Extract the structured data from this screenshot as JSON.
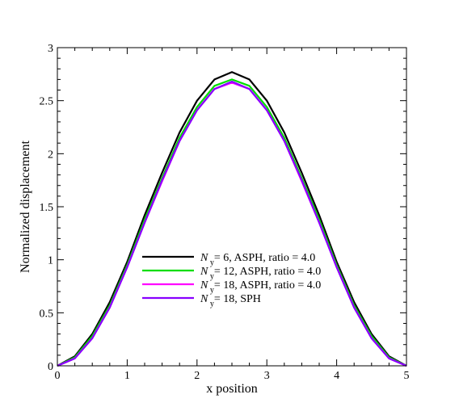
{
  "chart_data": {
    "type": "line",
    "xlabel": "x position",
    "ylabel": "Normalized displacement",
    "xlim": [
      0,
      5
    ],
    "ylim": [
      0,
      3
    ],
    "x_ticks": [
      "0",
      "1",
      "2",
      "3",
      "4",
      "5"
    ],
    "y_ticks": [
      "0",
      "0.5",
      "1",
      "1.5",
      "2",
      "2.5",
      "3"
    ],
    "grid": false,
    "legend_placement": "center-bottom",
    "x": [
      0,
      0.25,
      0.5,
      0.75,
      1.0,
      1.25,
      1.5,
      1.75,
      2.0,
      2.25,
      2.5,
      2.75,
      3.0,
      3.25,
      3.5,
      3.75,
      4.0,
      4.25,
      4.5,
      4.75,
      5.0
    ],
    "series": [
      {
        "label_prefix": "N",
        "label_sub": "y",
        "label_suffix": "= 6, ASPH, ratio = 4.0",
        "color": "#000000",
        "values": [
          0,
          0.09,
          0.3,
          0.6,
          0.98,
          1.42,
          1.82,
          2.2,
          2.5,
          2.7,
          2.77,
          2.7,
          2.5,
          2.2,
          1.82,
          1.42,
          0.98,
          0.6,
          0.3,
          0.09,
          0
        ]
      },
      {
        "label_prefix": "N",
        "label_sub": "y",
        "label_suffix": "= 12, ASPH, ratio = 4.0",
        "color": "#00dd00",
        "values": [
          0,
          0.08,
          0.28,
          0.57,
          0.95,
          1.38,
          1.77,
          2.15,
          2.44,
          2.64,
          2.7,
          2.64,
          2.44,
          2.15,
          1.77,
          1.38,
          0.95,
          0.57,
          0.28,
          0.08,
          0
        ]
      },
      {
        "label_prefix": "N",
        "label_sub": "y",
        "label_suffix": "= 18, ASPH, ratio = 4.0",
        "color": "#ff00ff",
        "values": [
          0,
          0.07,
          0.26,
          0.55,
          0.93,
          1.35,
          1.74,
          2.12,
          2.41,
          2.61,
          2.67,
          2.61,
          2.41,
          2.12,
          1.74,
          1.35,
          0.93,
          0.55,
          0.26,
          0.07,
          0
        ]
      },
      {
        "label_prefix": "N",
        "label_sub": "y",
        "label_suffix": "= 18, SPH",
        "color": "#8800ff",
        "values": [
          0,
          0.07,
          0.26,
          0.55,
          0.93,
          1.35,
          1.75,
          2.12,
          2.41,
          2.61,
          2.68,
          2.61,
          2.41,
          2.12,
          1.75,
          1.35,
          0.93,
          0.55,
          0.26,
          0.07,
          0
        ]
      }
    ]
  }
}
